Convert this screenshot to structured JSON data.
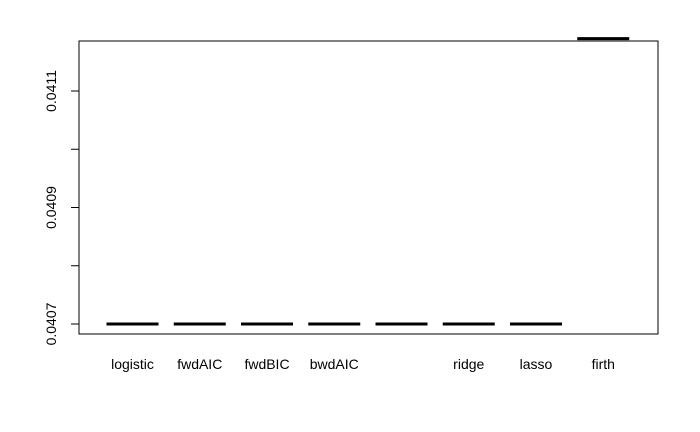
{
  "chart_data": {
    "type": "boxplot",
    "title": "",
    "xlabel": "",
    "ylabel": "",
    "categories": [
      "logistic",
      "fwdAIC",
      "fwdBIC",
      "bwdAIC",
      "",
      "ridge",
      "lasso",
      "firth"
    ],
    "values": [
      0.0407,
      0.0407,
      0.0407,
      0.0407,
      0.0407,
      0.0407,
      0.0407,
      0.04119
    ],
    "ylim": [
      0.04068,
      0.04122
    ],
    "y_ticks": [
      0.0407,
      0.0408,
      0.0409,
      0.041,
      0.0411
    ],
    "y_tick_labels": [
      "0.0407",
      "",
      "0.0409",
      "",
      "0.0411"
    ],
    "grid": false,
    "colors": {
      "median_line": "#000000",
      "axis": "#000000"
    }
  }
}
